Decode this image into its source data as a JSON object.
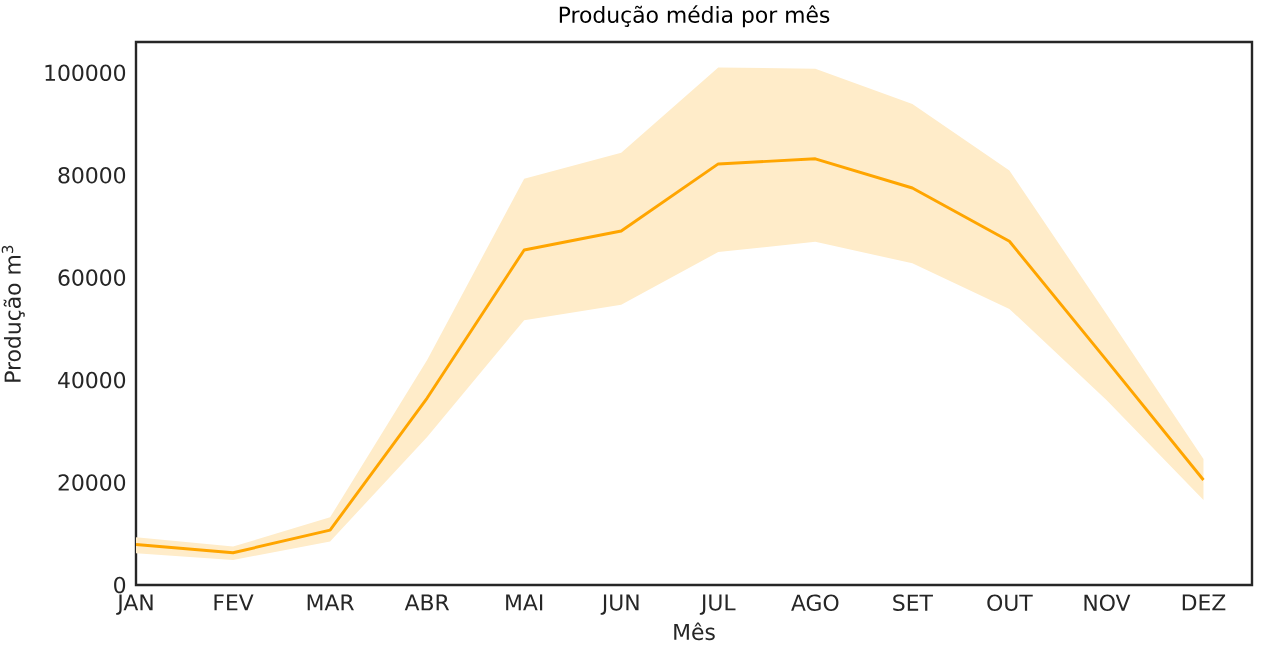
{
  "chart_data": {
    "type": "line",
    "title": "Produção média por mês",
    "xlabel": "Mês",
    "ylabel": "Produção m$^{3}$",
    "categories": [
      "JAN",
      "FEV",
      "MAR",
      "ABR",
      "MAI",
      "JUN",
      "JUL",
      "AGO",
      "SET",
      "OUT",
      "NOV",
      "DEZ"
    ],
    "series": [
      {
        "color": "#ffa500",
        "values": [
          7900,
          6300,
          10700,
          36500,
          65400,
          69100,
          82200,
          83200,
          77500,
          67100,
          43900,
          20500
        ],
        "lower": [
          6200,
          4900,
          8500,
          28900,
          51700,
          54700,
          65000,
          67000,
          62800,
          53900,
          36100,
          16600
        ],
        "upper": [
          9300,
          7500,
          13200,
          43900,
          79300,
          84400,
          101000,
          100800,
          93900,
          80900,
          52900,
          24600
        ]
      }
    ],
    "ylim": [
      0,
      106000
    ],
    "yticks": [
      0,
      20000,
      40000,
      60000,
      80000,
      100000
    ],
    "grid": false,
    "marker": "none",
    "line_style": "solid"
  }
}
